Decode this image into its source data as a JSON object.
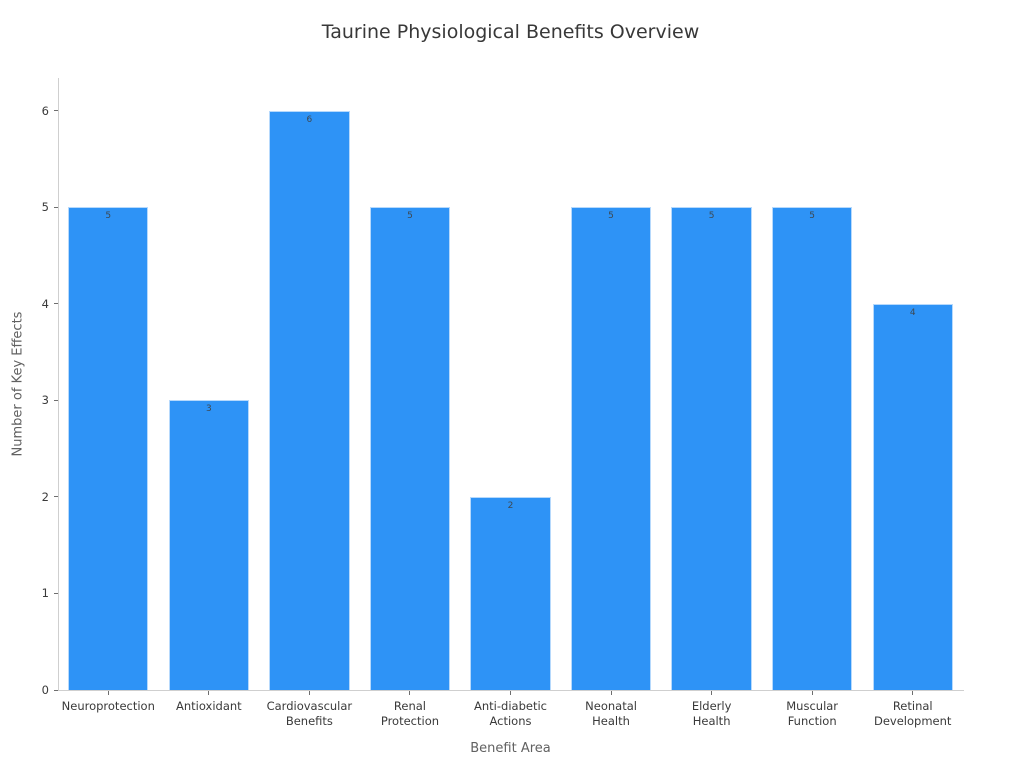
{
  "figure": {
    "background": "#ffffff"
  },
  "chart_data": {
    "type": "bar",
    "title": "Taurine Physiological Benefits Overview",
    "xlabel": "Benefit Area",
    "ylabel": "Number of Key Effects",
    "categories": [
      "Neuroprotection",
      "Antioxidant",
      "Cardiovascular\nBenefits",
      "Renal\nProtection",
      "Anti-diabetic\nActions",
      "Neonatal\nHealth",
      "Elderly\nHealth",
      "Muscular\nFunction",
      "Retinal\nDevelopment"
    ],
    "values": [
      5,
      3,
      6,
      5,
      2,
      5,
      5,
      5,
      4
    ],
    "bar_value_labels": [
      "5",
      "3",
      "6",
      "5",
      "2",
      "5",
      "5",
      "5",
      "4"
    ],
    "yticks": [
      0,
      1,
      2,
      3,
      4,
      5,
      6
    ],
    "ylim": [
      0,
      6.34
    ],
    "bar_width_fraction": 0.8,
    "grid": false,
    "legend": null,
    "colors": {
      "bar_fill": "#2e93f6",
      "bar_edge": "rgba(255,255,255,0.65)",
      "spine": "#cfcfcf",
      "tick_mark": "#6e6e6e",
      "title": "#383838",
      "axis_title": "#616161",
      "tick_label": "#3a3a3a",
      "value_label": "#3d4852"
    }
  }
}
